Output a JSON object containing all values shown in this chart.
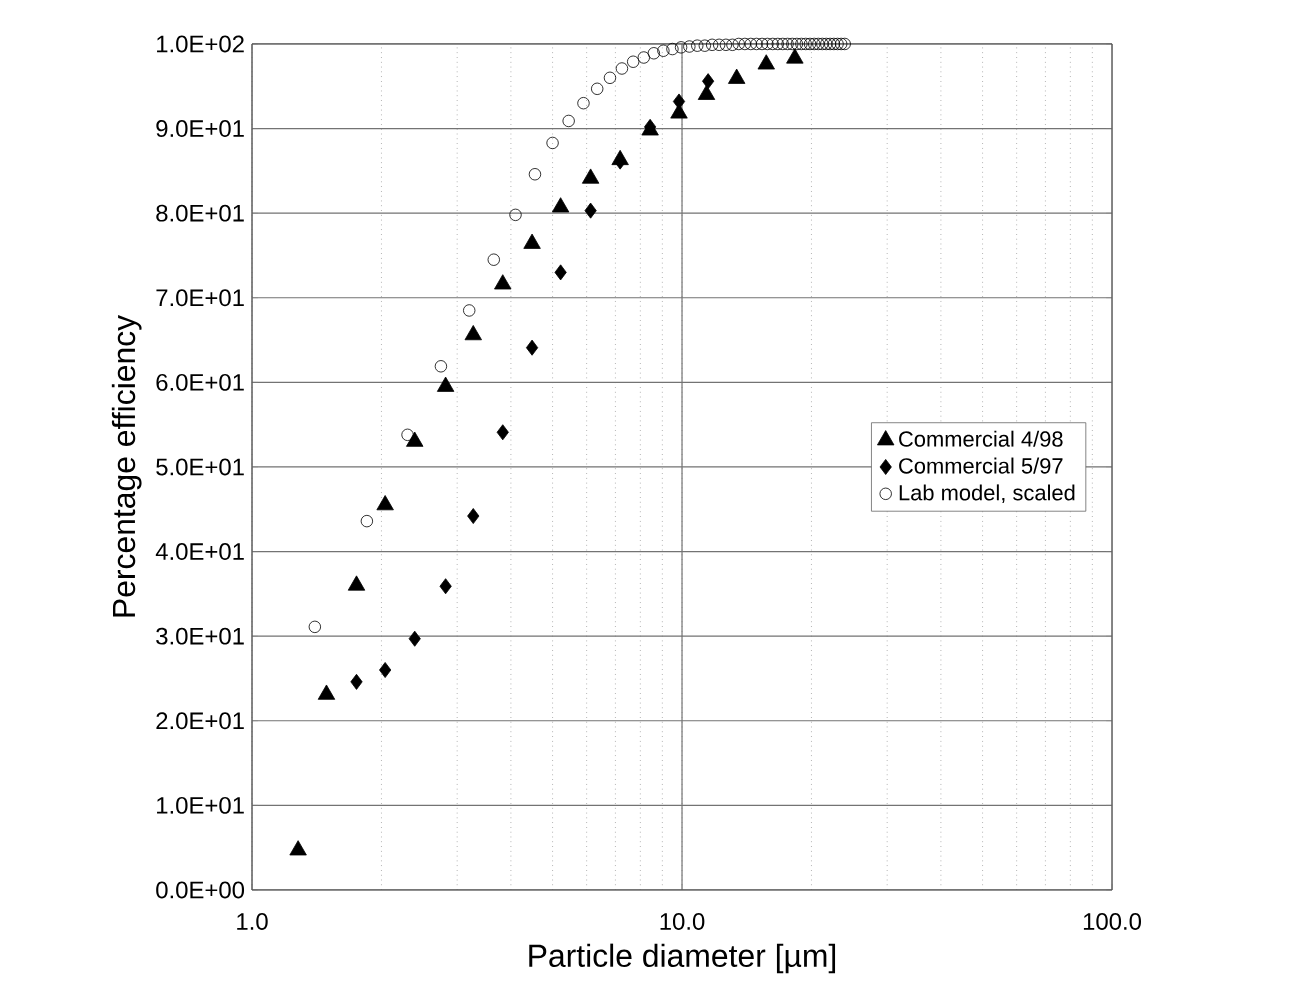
{
  "chart_data": {
    "type": "scatter",
    "xlabel": "Particle diameter [µm]",
    "ylabel": "Percentage efficiency",
    "log": "x",
    "grid": true,
    "legend": "right",
    "xlim": [
      1,
      100
    ],
    "xticks": [
      {
        "value": 1,
        "label": "1.0"
      },
      {
        "value": 10,
        "label": "10.0"
      },
      {
        "value": 100,
        "label": "100.0"
      }
    ],
    "ylim": [
      0,
      100
    ],
    "yticks": [
      {
        "value": 0,
        "label": "0.0E+00"
      },
      {
        "value": 10,
        "label": "1.0E+01"
      },
      {
        "value": 20,
        "label": "2.0E+01"
      },
      {
        "value": 30,
        "label": "3.0E+01"
      },
      {
        "value": 40,
        "label": "4.0E+01"
      },
      {
        "value": 50,
        "label": "5.0E+01"
      },
      {
        "value": 60,
        "label": "6.0E+01"
      },
      {
        "value": 70,
        "label": "7.0E+01"
      },
      {
        "value": 80,
        "label": "8.0E+01"
      },
      {
        "value": 90,
        "label": "9.0E+01"
      },
      {
        "value": 100,
        "label": "1.0E+02"
      }
    ],
    "series": [
      {
        "name": "Commercial 4/98",
        "color": "#000000",
        "marker": "triangle",
        "x": [
          1.28,
          1.49,
          1.75,
          2.04,
          2.39,
          2.82,
          3.27,
          3.83,
          4.48,
          5.22,
          6.13,
          7.18,
          8.43,
          9.84,
          11.4,
          13.4,
          15.7,
          18.3
        ],
        "values": [
          4.7,
          23.1,
          36.0,
          45.5,
          53.0,
          59.5,
          65.6,
          71.6,
          76.4,
          80.7,
          84.1,
          86.3,
          89.8,
          91.8,
          94.0,
          95.9,
          97.6,
          98.3
        ]
      },
      {
        "name": "Commercial 5/97",
        "color": "#000000",
        "marker": "diamond",
        "x": [
          1.75,
          2.04,
          2.39,
          2.82,
          3.27,
          3.83,
          4.48,
          5.22,
          6.13,
          7.18,
          8.43,
          9.84,
          11.5
        ],
        "values": [
          24.6,
          26.0,
          29.7,
          35.9,
          44.2,
          54.1,
          64.1,
          73.0,
          80.3,
          86.1,
          90.2,
          93.2,
          95.6
        ]
      },
      {
        "name": "Lab model, scaled",
        "color": "#000000",
        "marker": "circle",
        "x": [
          1.4,
          1.85,
          2.3,
          2.75,
          3.2,
          3.65,
          4.1,
          4.55,
          5.0,
          5.45,
          5.9,
          6.35,
          6.8,
          7.25,
          7.7,
          8.15,
          8.6,
          9.05,
          9.5,
          9.95,
          10.4,
          10.85,
          11.3,
          11.75,
          12.2,
          12.65,
          13.1,
          13.55,
          14.0,
          14.45,
          14.9,
          15.35,
          15.8,
          16.25,
          16.7,
          17.15,
          17.6,
          18.05,
          18.5,
          18.95,
          19.4,
          19.85,
          20.3,
          20.75,
          21.2,
          21.65,
          22.1,
          22.55,
          23.0,
          23.45,
          23.9
        ],
        "values": [
          31.1,
          43.6,
          53.8,
          61.9,
          68.5,
          74.5,
          79.8,
          84.6,
          88.3,
          90.9,
          93.0,
          94.7,
          96.0,
          97.1,
          97.9,
          98.4,
          98.9,
          99.2,
          99.4,
          99.6,
          99.7,
          99.8,
          99.8,
          99.9,
          99.9,
          99.9,
          99.9,
          100,
          100,
          100,
          100,
          100,
          100,
          100,
          100,
          100,
          100,
          100,
          100,
          100,
          100,
          100,
          100,
          100,
          100,
          100,
          100,
          100,
          100,
          100,
          100
        ]
      }
    ]
  }
}
